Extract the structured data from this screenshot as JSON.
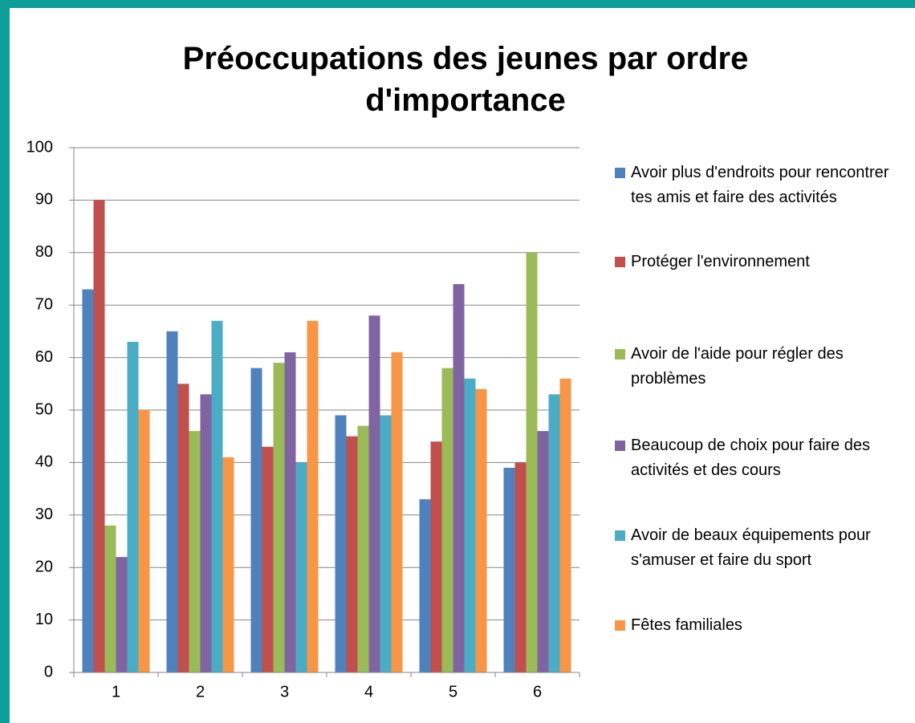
{
  "chart_data": {
    "type": "bar",
    "title": "Préoccupations des jeunes par ordre d'importance",
    "categories": [
      "1",
      "2",
      "3",
      "4",
      "5",
      "6"
    ],
    "series": [
      {
        "name": "Avoir plus d'endroits pour rencontrer tes amis et faire des activités",
        "color": "#4f81bd",
        "values": [
          73,
          65,
          58,
          49,
          33,
          39
        ]
      },
      {
        "name": "Protéger l'environnement",
        "color": "#c0504d",
        "values": [
          90,
          55,
          43,
          45,
          44,
          40
        ]
      },
      {
        "name": "Avoir de l'aide pour régler des problèmes",
        "color": "#9bbb59",
        "values": [
          28,
          46,
          59,
          47,
          58,
          80
        ]
      },
      {
        "name": "Beaucoup de choix pour faire des activités et des cours",
        "color": "#8064a2",
        "values": [
          22,
          53,
          61,
          68,
          74,
          46
        ]
      },
      {
        "name": "Avoir de beaux équipements pour s'amuser et faire du sport",
        "color": "#4bacc6",
        "values": [
          63,
          67,
          40,
          49,
          56,
          53
        ]
      },
      {
        "name": "Fêtes familiales",
        "color": "#f79646",
        "values": [
          50,
          41,
          67,
          61,
          54,
          56
        ]
      }
    ],
    "ylim": [
      0,
      100
    ],
    "yticks": [
      0,
      10,
      20,
      30,
      40,
      50,
      60,
      70,
      80,
      90,
      100
    ],
    "grid": true,
    "legend": "right"
  }
}
